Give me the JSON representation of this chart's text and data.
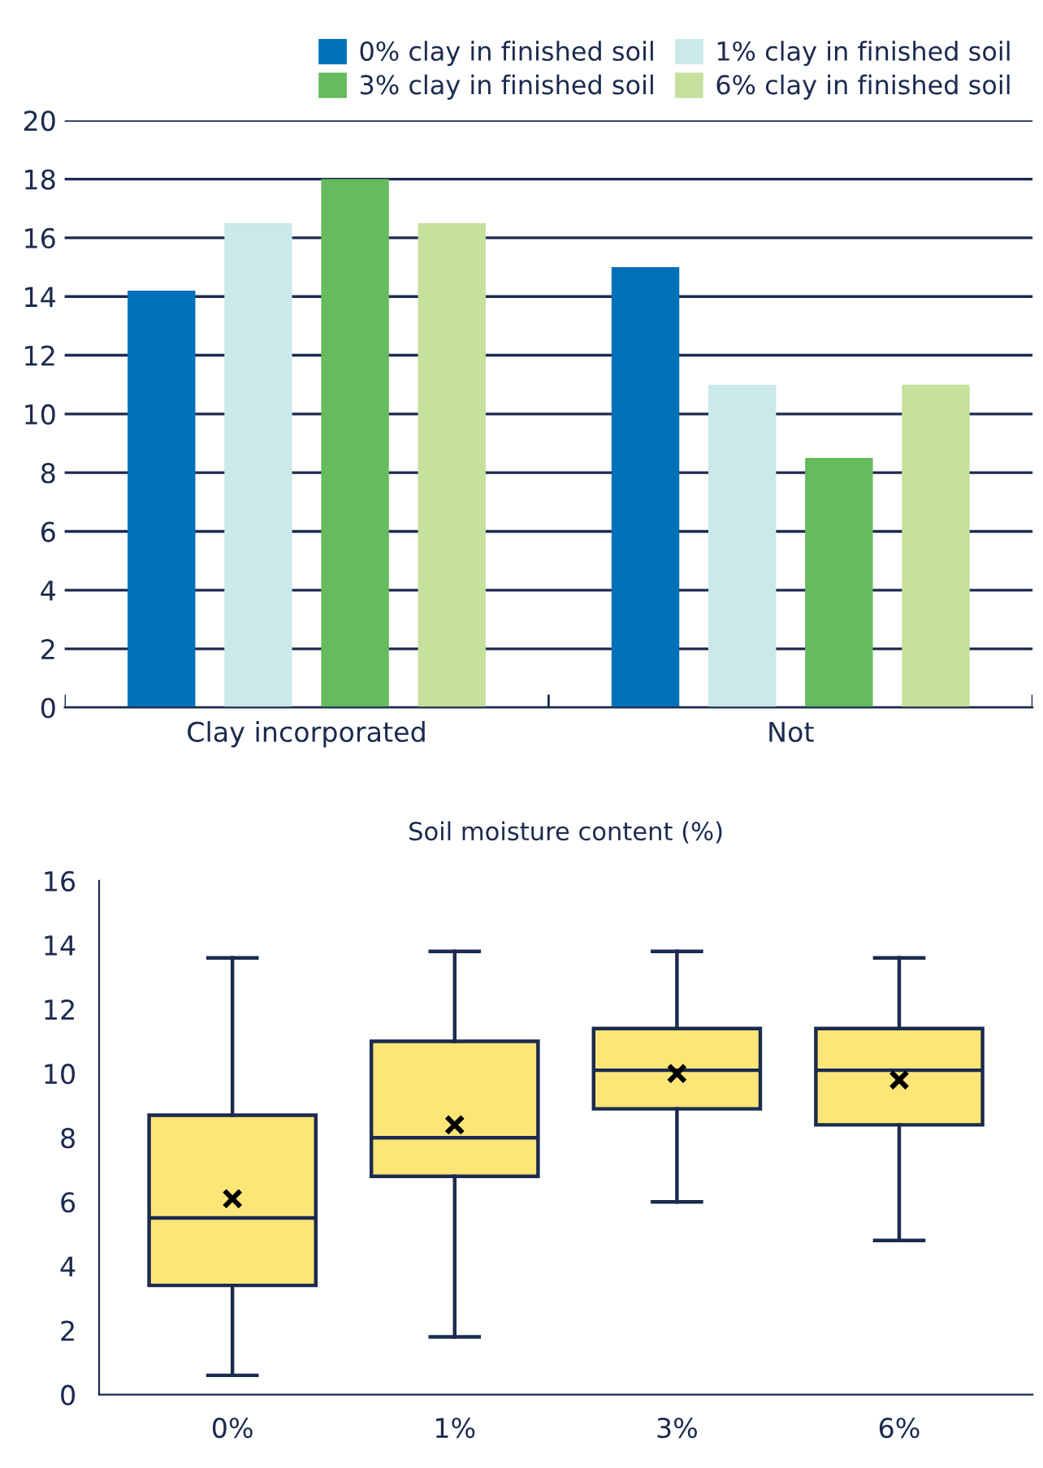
{
  "chart_data": [
    {
      "type": "bar",
      "categories": [
        "Clay incorporated",
        "Not"
      ],
      "series": [
        {
          "name": "0% clay in finished soil",
          "color": "#0071b9",
          "values": [
            14.2,
            15.0
          ]
        },
        {
          "name": "1% clay in finished soil",
          "color": "#cbe9ea",
          "values": [
            16.5,
            11.0
          ]
        },
        {
          "name": "3% clay in finished soil",
          "color": "#65bb5e",
          "values": [
            18.0,
            8.5
          ]
        },
        {
          "name": "6% clay in finished soil",
          "color": "#c6e09d",
          "values": [
            16.5,
            11.0
          ]
        }
      ],
      "ylim": [
        0,
        20
      ],
      "yticks": [
        0,
        2,
        4,
        6,
        8,
        10,
        12,
        14,
        16,
        18,
        20
      ],
      "grid": "y",
      "legend": "top right"
    },
    {
      "type": "box",
      "title": "Soil moisture content (%)",
      "categories": [
        "0%",
        "1%",
        "3%",
        "6%"
      ],
      "color": "#fde677",
      "boxes": [
        {
          "low": 0.6,
          "q1": 3.4,
          "median": 5.5,
          "q3": 8.7,
          "high": 13.6,
          "mean": 6.1
        },
        {
          "low": 1.8,
          "q1": 6.8,
          "median": 8.0,
          "q3": 11.0,
          "high": 13.8,
          "mean": 8.4
        },
        {
          "low": 6.0,
          "q1": 8.9,
          "median": 10.1,
          "q3": 11.4,
          "high": 13.8,
          "mean": 10.0
        },
        {
          "low": 4.8,
          "q1": 8.4,
          "median": 10.1,
          "q3": 11.4,
          "high": 13.6,
          "mean": 9.8
        }
      ],
      "ylim": [
        0,
        16
      ],
      "yticks": [
        0,
        2,
        4,
        6,
        8,
        10,
        12,
        14,
        16
      ],
      "grid": false,
      "marker": "cross"
    }
  ]
}
